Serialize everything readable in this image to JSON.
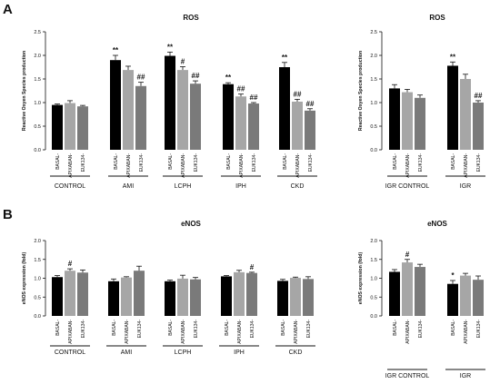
{
  "panels": {
    "a": "A",
    "b": "B"
  },
  "chart_data": [
    {
      "type": "bar",
      "title": "ROS",
      "ylabel": "Reactive Oxyen Species production",
      "ylim": [
        0,
        2.5
      ],
      "yticks": [
        "0.0",
        "0.5",
        "1.0",
        "1.5",
        "2.0",
        "2.5"
      ],
      "bar_labels": [
        "BASAL",
        "APIXABAN",
        "EUK134"
      ],
      "groups": [
        {
          "name": "CONTROL",
          "values": [
            0.95,
            0.99,
            0.92
          ],
          "errors": [
            0.02,
            0.05,
            0.02
          ],
          "sig": [
            "",
            "",
            ""
          ]
        },
        {
          "name": "AMI",
          "values": [
            1.9,
            1.69,
            1.35
          ],
          "errors": [
            0.1,
            0.08,
            0.08
          ],
          "sig": [
            "**",
            "",
            "##"
          ]
        },
        {
          "name": "LCPH",
          "values": [
            1.99,
            1.69,
            1.4
          ],
          "errors": [
            0.08,
            0.07,
            0.06
          ],
          "sig": [
            "**",
            "#",
            "##"
          ]
        },
        {
          "name": "IPH",
          "values": [
            1.39,
            1.13,
            0.98
          ],
          "errors": [
            0.03,
            0.05,
            0.02
          ],
          "sig": [
            "**",
            "##",
            "##"
          ]
        },
        {
          "name": "CKD",
          "values": [
            1.75,
            1.02,
            0.83
          ],
          "errors": [
            0.1,
            0.05,
            0.04
          ],
          "sig": [
            "**",
            "##",
            "##"
          ]
        }
      ],
      "colors": [
        "#000000",
        "#a6a6a6",
        "#7a7a7a"
      ]
    },
    {
      "type": "bar",
      "title": "ROS",
      "ylabel": "Reactive Oxyen Species production",
      "ylim": [
        0,
        2.5
      ],
      "yticks": [
        "0.0",
        "0.5",
        "1.0",
        "1.5",
        "2.0",
        "2.5"
      ],
      "bar_labels": [
        "BASAL",
        "APIXABAN",
        "EUK134"
      ],
      "groups": [
        {
          "name": "IGR CONTROL",
          "values": [
            1.3,
            1.22,
            1.1
          ],
          "errors": [
            0.08,
            0.06,
            0.06
          ],
          "sig": [
            "",
            "",
            ""
          ]
        },
        {
          "name": "IGR",
          "values": [
            1.78,
            1.5,
            1.0
          ],
          "errors": [
            0.08,
            0.1,
            0.04
          ],
          "sig": [
            "**",
            "",
            "##"
          ]
        }
      ],
      "colors": [
        "#000000",
        "#a6a6a6",
        "#7a7a7a"
      ]
    },
    {
      "type": "bar",
      "title": "eNOS",
      "ylabel": "eNOS expression (fold)",
      "ylim": [
        0,
        2.0
      ],
      "yticks": [
        "0.0",
        "0.5",
        "1.0",
        "1.5",
        "2.0"
      ],
      "bar_labels": [
        "BASAL",
        "APIXABAN",
        "EUK134"
      ],
      "groups": [
        {
          "name": "CONTROL",
          "values": [
            1.03,
            1.2,
            1.15
          ],
          "errors": [
            0.04,
            0.05,
            0.07
          ],
          "sig": [
            "",
            "#",
            ""
          ]
        },
        {
          "name": "AMI",
          "values": [
            0.92,
            1.02,
            1.2
          ],
          "errors": [
            0.06,
            0.02,
            0.12
          ],
          "sig": [
            "",
            "",
            ""
          ]
        },
        {
          "name": "LCPH",
          "values": [
            0.92,
            0.99,
            0.97
          ],
          "errors": [
            0.03,
            0.09,
            0.05
          ],
          "sig": [
            "",
            "",
            ""
          ]
        },
        {
          "name": "IPH",
          "values": [
            1.05,
            1.16,
            1.14
          ],
          "errors": [
            0.02,
            0.05,
            0.02
          ],
          "sig": [
            "",
            "",
            "#"
          ]
        },
        {
          "name": "CKD",
          "values": [
            0.93,
            1.01,
            0.98
          ],
          "errors": [
            0.04,
            0.02,
            0.06
          ],
          "sig": [
            "",
            "",
            ""
          ]
        }
      ],
      "colors": [
        "#000000",
        "#a6a6a6",
        "#7a7a7a"
      ]
    },
    {
      "type": "bar",
      "title": "eNOS",
      "ylabel": "eNOS expression (fold)",
      "ylim": [
        0,
        2.0
      ],
      "yticks": [
        "0.0",
        "0.5",
        "1.0",
        "1.5",
        "2.0"
      ],
      "bar_labels": [
        "BASAL",
        "APIXABAN",
        "EUK134"
      ],
      "groups": [
        {
          "name": "IGR CONTROL",
          "values": [
            1.17,
            1.42,
            1.3
          ],
          "errors": [
            0.06,
            0.08,
            0.07
          ],
          "sig": [
            "",
            "#",
            ""
          ]
        },
        {
          "name": "IGR",
          "values": [
            0.85,
            1.07,
            0.96
          ],
          "errors": [
            0.09,
            0.06,
            0.1
          ],
          "sig": [
            "*",
            "",
            ""
          ]
        }
      ],
      "colors": [
        "#000000",
        "#a6a6a6",
        "#7a7a7a"
      ]
    }
  ]
}
